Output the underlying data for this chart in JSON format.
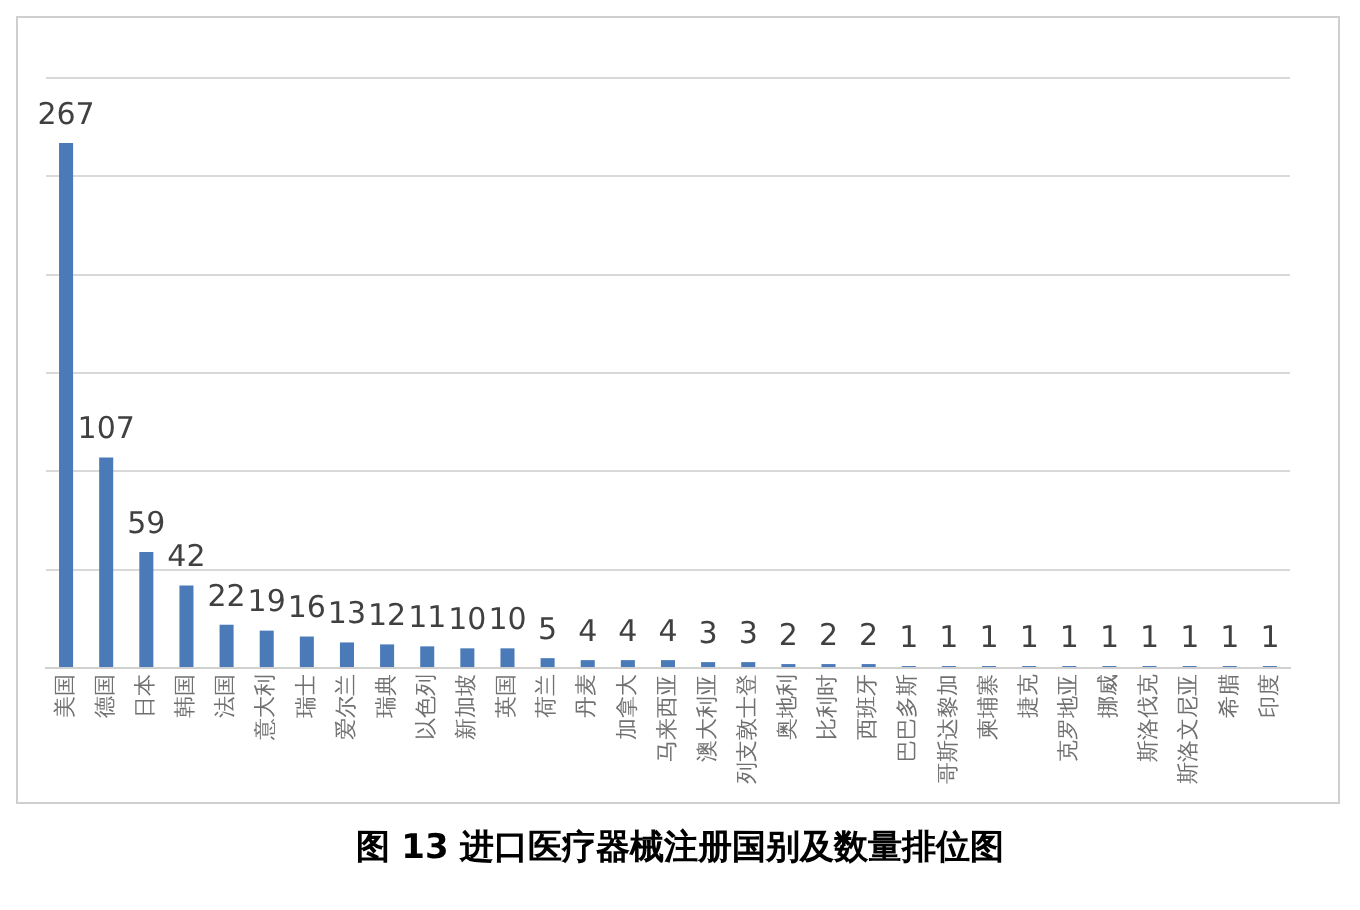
{
  "chart_data": {
    "type": "bar",
    "title": "图 13 进口医疗器械注册国别及数量排位图",
    "categories": [
      "美国",
      "德国",
      "日本",
      "韩国",
      "法国",
      "意大利",
      "瑞士",
      "爱尔兰",
      "瑞典",
      "以色列",
      "新加坡",
      "英国",
      "荷兰",
      "丹麦",
      "加拿大",
      "马来西亚",
      "澳大利亚",
      "列支敦士登",
      "奥地利",
      "比利时",
      "西班牙",
      "巴巴多斯",
      "哥斯达黎加",
      "柬埔寨",
      "捷克",
      "克罗地亚",
      "挪威",
      "斯洛伐克",
      "斯洛文尼亚",
      "希腊",
      "印度"
    ],
    "values": [
      267,
      107,
      59,
      42,
      22,
      19,
      16,
      13,
      12,
      11,
      10,
      10,
      5,
      4,
      4,
      4,
      3,
      3,
      2,
      2,
      2,
      1,
      1,
      1,
      1,
      1,
      1,
      1,
      1,
      1,
      1
    ],
    "color": "#4a7ab8",
    "ylim": [
      0,
      300
    ],
    "yticks": [
      {
        "value": 0,
        "label": null
      },
      {
        "value": 50,
        "label": null
      },
      {
        "value": 100,
        "label": null
      },
      {
        "value": 150,
        "label": null
      },
      {
        "value": 200,
        "label": null
      },
      {
        "value": 250,
        "label": null
      },
      {
        "value": 300,
        "label": null
      }
    ],
    "tick_labels": "x",
    "grid": "y",
    "data_labels": true
  }
}
